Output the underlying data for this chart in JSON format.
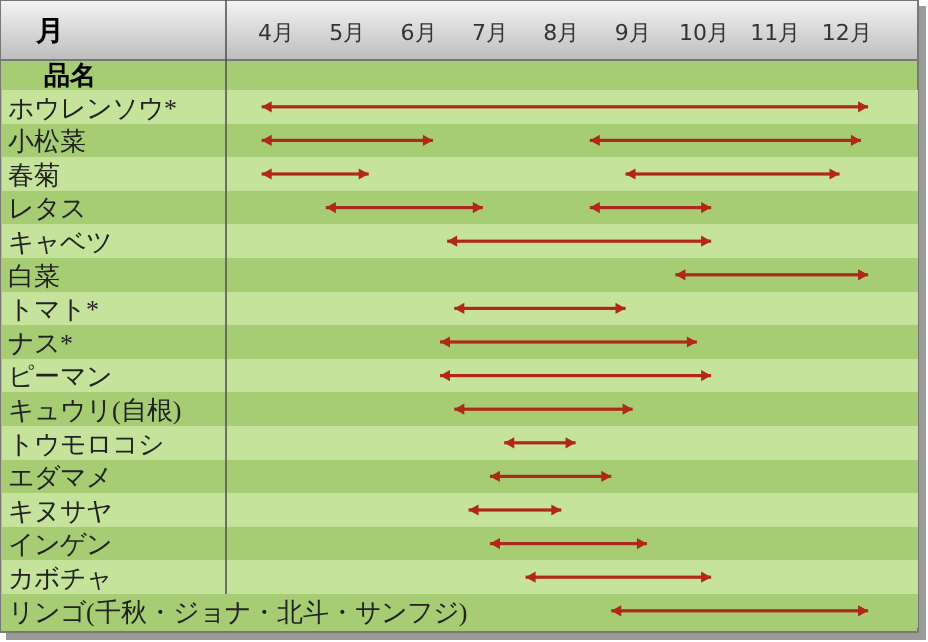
{
  "chart_data": {
    "type": "bar",
    "orientation": "horizontal",
    "xlabel": "月",
    "ylabel": "品名",
    "categories": [
      "ホウレンソウ*",
      "小松菜",
      "春菊",
      "レタス",
      "キャベツ",
      "白菜",
      "トマト*",
      "ナス*",
      "ピーマン",
      "キュウリ(自根)",
      "トウモロコシ",
      "エダマメ",
      "キヌサヤ",
      "インゲン",
      "カボチャ",
      "リンゴ(千秋・ジョナ・北斗・サンフジ)"
    ],
    "xlim": [
      3.3,
      13.0
    ],
    "xticks": [
      {
        "value": 4,
        "label": "4月"
      },
      {
        "value": 5,
        "label": "5月"
      },
      {
        "value": 6,
        "label": "6月"
      },
      {
        "value": 7,
        "label": "7月"
      },
      {
        "value": 8,
        "label": "8月"
      },
      {
        "value": 9,
        "label": "9月"
      },
      {
        "value": 10,
        "label": "10月"
      },
      {
        "value": 11,
        "label": "11月"
      },
      {
        "value": 12,
        "label": "12月"
      }
    ],
    "grid": false,
    "series": [
      {
        "color": "#b0281a",
        "base": [
          3.8,
          3.8,
          3.8,
          4.7,
          6.4,
          9.6,
          6.5,
          6.3,
          6.3,
          6.5,
          7.2,
          7.0,
          6.7,
          7.0,
          7.5,
          8.7
        ],
        "values": [
          8.5,
          2.4,
          1.5,
          2.2,
          3.7,
          2.7,
          2.4,
          3.6,
          3.8,
          2.5,
          1.0,
          1.7,
          1.3,
          2.2,
          2.6,
          3.6
        ]
      },
      {
        "color": "#b0281a",
        "base": [
          null,
          8.4,
          8.9,
          8.4,
          null,
          null,
          null,
          null,
          null,
          null,
          null,
          null,
          null,
          null,
          null,
          null
        ],
        "values": [
          null,
          3.8,
          3.0,
          1.7,
          null,
          null,
          null,
          null,
          null,
          null,
          null,
          null,
          null,
          null,
          null,
          null
        ]
      }
    ]
  }
}
